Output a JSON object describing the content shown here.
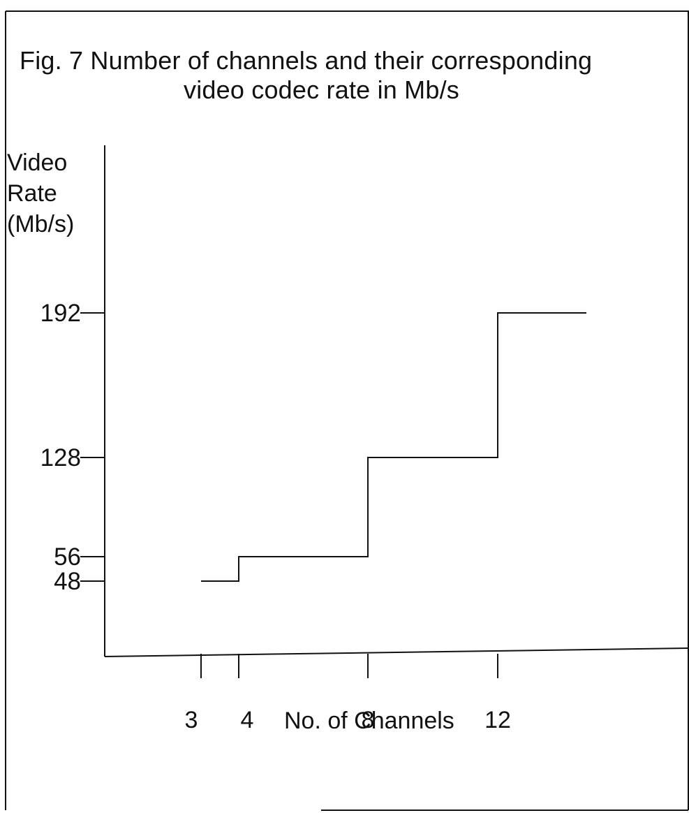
{
  "chart_data": {
    "type": "line",
    "style": "step",
    "title_lines": [
      "Fig. 7 Number of channels and their corresponding",
      "video codec  rate in Mb/s"
    ],
    "xlabel": "No. of Channels",
    "ylabel_lines": [
      "Video",
      "Rate",
      "(Mb/s)"
    ],
    "x_ticks": [
      3,
      4,
      8,
      12
    ],
    "y_ticks": [
      48,
      56,
      128,
      192
    ],
    "series": [
      {
        "values": [
          {
            "x": 3,
            "y": 48
          },
          {
            "x": 4,
            "y": 56
          },
          {
            "x": 8,
            "y": 128
          },
          {
            "x": 12,
            "y": 192
          },
          {
            "x": 14.7,
            "y": 192
          }
        ]
      }
    ],
    "grid": false,
    "legend": "none"
  }
}
